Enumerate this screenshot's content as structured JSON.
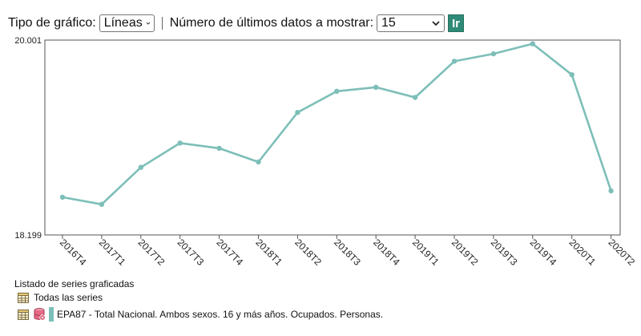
{
  "toolbar": {
    "chart_type_label": "Tipo de gráfico:",
    "chart_type_value": "Líneas",
    "count_label": "Número de últimos datos a mostrar:",
    "count_value": "15",
    "go_label": "Ir"
  },
  "chart_data": {
    "type": "line",
    "categories": [
      "2016T4",
      "2017T1",
      "2017T2",
      "2017T3",
      "2017T4",
      "2018T1",
      "2018T2",
      "2018T3",
      "2018T4",
      "2019T1",
      "2019T2",
      "2019T3",
      "2019T4",
      "2020T1",
      "2020T2"
    ],
    "series": [
      {
        "values": [
          18.548,
          18.482,
          18.824,
          19.049,
          19.001,
          18.874,
          19.332,
          19.528,
          19.565,
          19.471,
          19.805,
          19.874,
          19.967,
          19.681,
          18.607
        ],
        "color": "#7dbfb8"
      }
    ],
    "ylim": [
      18.199,
      20.001
    ],
    "y_tick_labels": [
      "20.001",
      "18.199"
    ],
    "grid": false
  },
  "legend": {
    "title": "Listado de series graficadas",
    "all_series": "Todas las series",
    "series_label": "EPA87 - Total Nacional. Ambos sexos. 16 y más años. Ocupados. Personas."
  },
  "colors": {
    "accent": "#2f8a78",
    "series": "#7dbfb8",
    "db_icon": "#d94b6a"
  }
}
